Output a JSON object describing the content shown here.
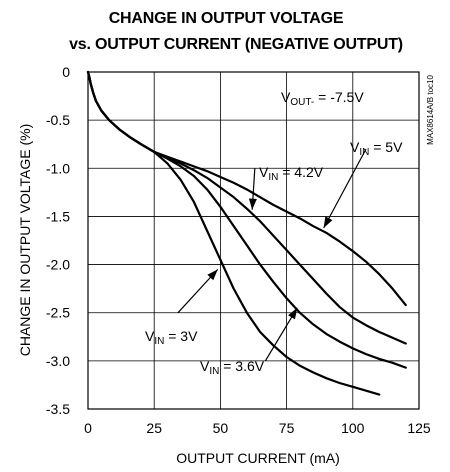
{
  "chart_data": {
    "type": "line",
    "title_lines": [
      "CHANGE IN OUTPUT VOLTAGE",
      "vs. OUTPUT CURRENT (NEGATIVE OUTPUT)"
    ],
    "xlabel": "OUTPUT CURRENT (mA)",
    "ylabel": "CHANGE IN OUTPUT VOLTAGE (%)",
    "xlim": [
      0,
      125
    ],
    "ylim": [
      -3.5,
      0
    ],
    "x_ticks": [
      0,
      25,
      50,
      75,
      100,
      125
    ],
    "y_ticks": [
      0,
      -0.5,
      -1.0,
      -1.5,
      -2.0,
      -2.5,
      -3.0,
      -3.5
    ],
    "x_tick_labels": [
      "0",
      "25",
      "50",
      "75",
      "100",
      "125"
    ],
    "y_tick_labels": [
      "0",
      "-0.5",
      "-1.0",
      "-1.5",
      "-2.0",
      "-2.5",
      "-3.0",
      "-3.5"
    ],
    "grid": true,
    "legend": "none",
    "part_code": "MAX8614A/B toc10",
    "condition": {
      "main": "V",
      "sub": "OUT-",
      "tail": " = -7.5V"
    },
    "series": [
      {
        "x": [
          0,
          0.5,
          1,
          2,
          3,
          5,
          8,
          12,
          16,
          20,
          25,
          30,
          35,
          40,
          45,
          50,
          55,
          60,
          65,
          70,
          75,
          80,
          85,
          90,
          95,
          100,
          105,
          110,
          115,
          120
        ],
        "y": [
          0,
          -0.05,
          -0.12,
          -0.22,
          -0.3,
          -0.4,
          -0.5,
          -0.6,
          -0.68,
          -0.75,
          -0.83,
          -0.88,
          -0.93,
          -0.98,
          -1.03,
          -1.09,
          -1.15,
          -1.22,
          -1.3,
          -1.38,
          -1.45,
          -1.52,
          -1.6,
          -1.67,
          -1.76,
          -1.86,
          -1.97,
          -2.1,
          -2.25,
          -2.42
        ]
      },
      {
        "x": [
          0,
          0.5,
          1,
          2,
          3,
          5,
          8,
          12,
          16,
          20,
          25,
          30,
          35,
          40,
          45,
          50,
          55,
          60,
          65,
          70,
          75,
          80,
          85,
          90,
          95,
          100,
          105,
          110,
          115,
          120
        ],
        "y": [
          0,
          -0.05,
          -0.12,
          -0.22,
          -0.3,
          -0.4,
          -0.5,
          -0.6,
          -0.68,
          -0.75,
          -0.83,
          -0.89,
          -0.95,
          -1.02,
          -1.1,
          -1.2,
          -1.3,
          -1.42,
          -1.55,
          -1.7,
          -1.85,
          -2.0,
          -2.15,
          -2.3,
          -2.44,
          -2.55,
          -2.63,
          -2.7,
          -2.76,
          -2.82
        ]
      },
      {
        "x": [
          0,
          0.5,
          1,
          2,
          3,
          5,
          8,
          12,
          16,
          20,
          25,
          30,
          35,
          40,
          45,
          50,
          55,
          60,
          65,
          70,
          75,
          80,
          85,
          90,
          95,
          100,
          105,
          110,
          115,
          120
        ],
        "y": [
          0,
          -0.05,
          -0.12,
          -0.22,
          -0.3,
          -0.4,
          -0.5,
          -0.6,
          -0.68,
          -0.75,
          -0.83,
          -0.9,
          -0.98,
          -1.08,
          -1.22,
          -1.4,
          -1.6,
          -1.8,
          -2.0,
          -2.18,
          -2.35,
          -2.5,
          -2.62,
          -2.72,
          -2.8,
          -2.87,
          -2.93,
          -2.98,
          -3.02,
          -3.07
        ]
      },
      {
        "x": [
          0,
          0.5,
          1,
          2,
          3,
          5,
          8,
          12,
          16,
          20,
          25,
          30,
          35,
          40,
          45,
          50,
          55,
          60,
          65,
          70,
          75,
          80,
          85,
          90,
          95,
          100,
          105,
          110
        ],
        "y": [
          0,
          -0.05,
          -0.12,
          -0.22,
          -0.3,
          -0.4,
          -0.5,
          -0.6,
          -0.68,
          -0.75,
          -0.83,
          -0.95,
          -1.12,
          -1.35,
          -1.65,
          -1.95,
          -2.25,
          -2.5,
          -2.7,
          -2.84,
          -2.96,
          -3.05,
          -3.12,
          -3.18,
          -3.23,
          -3.27,
          -3.31,
          -3.35
        ]
      }
    ],
    "annotations": [
      {
        "main": "V",
        "sub": "IN",
        "tail": " = 5V"
      },
      {
        "main": "V",
        "sub": "IN",
        "tail": " = 4.2V"
      },
      {
        "main": "V",
        "sub": "IN",
        "tail": " = 3V"
      },
      {
        "main": "V",
        "sub": "IN",
        "tail": " = 3.6V"
      }
    ],
    "arrows": [
      {
        "from": [
          105,
          -0.8
        ],
        "to": [
          89,
          -1.62
        ]
      },
      {
        "from": [
          63,
          -1.0
        ],
        "to": [
          62,
          -1.43
        ]
      },
      {
        "from": [
          34,
          -2.5
        ],
        "to": [
          49,
          -2.05
        ]
      },
      {
        "from": [
          67,
          -3.0
        ],
        "to": [
          79,
          -2.45
        ]
      }
    ]
  }
}
